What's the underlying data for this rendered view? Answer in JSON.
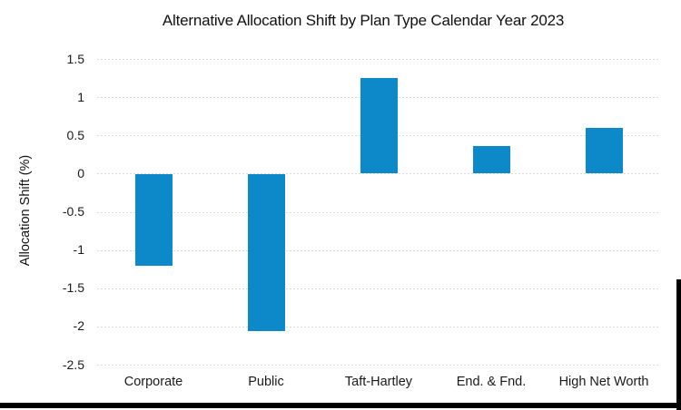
{
  "chart_data": {
    "type": "bar",
    "title": "Alternative Allocation Shift by Plan Type Calendar Year 2023",
    "categories": [
      "Corporate",
      "Public",
      "Taft-Hartley",
      "End. & Fnd.",
      "High Net Worth"
    ],
    "values": [
      -1.2,
      -2.05,
      1.25,
      0.36,
      0.6
    ],
    "xlabel": "",
    "ylabel": "Allocation Shift (%)",
    "ylim": [
      -2.5,
      1.5
    ],
    "ytick_labels": [
      "1.5",
      "1",
      "0.5",
      "0",
      "-0.5",
      "-1",
      "-1.5",
      "-2",
      "-2.5"
    ],
    "grid": true,
    "legend": "none",
    "bar_color": "#0d88c8",
    "gridline_color": "#d9d9d9",
    "text_color": "#1a1a1a",
    "background_color": "#ffffff",
    "frame_color": "#000000"
  }
}
